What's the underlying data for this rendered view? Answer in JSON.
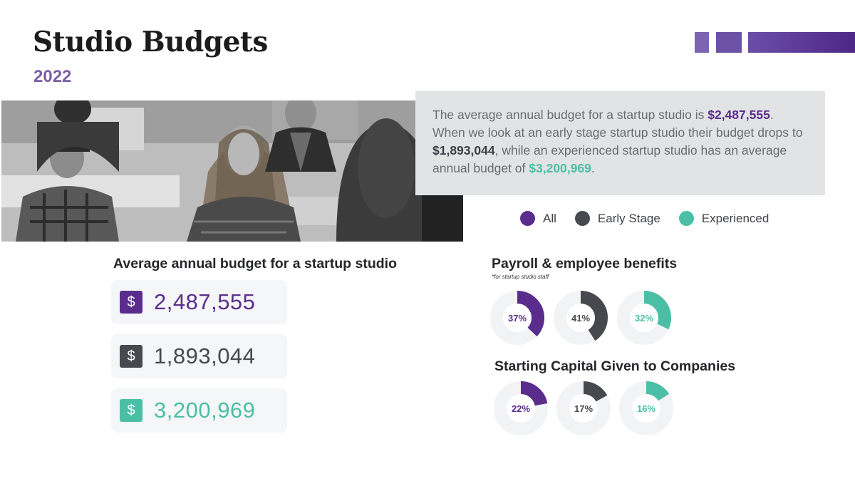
{
  "header": {
    "title": "Studio Budgets",
    "year": "2022"
  },
  "colors": {
    "all": "#5a2d8c",
    "early": "#46494e",
    "experienced": "#4bbfa6",
    "track": "#f2f3f5"
  },
  "summary": {
    "part1": "The average annual budget for a startup studio is ",
    "value_all": "$2,487,555",
    "part2": ". When we look at an early stage startup studio their budget drops to ",
    "value_early": "$1,893,044",
    "part3": ", while an experienced startup studio has an average annual budget of ",
    "value_experienced": "$3,200,969",
    "part4": "."
  },
  "legend": [
    {
      "label": "All",
      "color": "#5a2d8c"
    },
    {
      "label": "Early Stage",
      "color": "#46494e"
    },
    {
      "label": "Experienced",
      "color": "#4bbfa6"
    }
  ],
  "budgets": {
    "title": "Average annual budget for a startup studio",
    "items": [
      {
        "symbol": "$",
        "amount": "2,487,555",
        "color": "#5a2d8c"
      },
      {
        "symbol": "$",
        "amount": "1,893,044",
        "color": "#46494e"
      },
      {
        "symbol": "$",
        "amount": "3,200,969",
        "color": "#4bbfa6"
      }
    ]
  },
  "chart_data": [
    {
      "type": "pie",
      "title": "Payroll & employee benefits",
      "subtitle": "*for startup studio staff",
      "categories": [
        "All",
        "Early Stage",
        "Experienced"
      ],
      "values": [
        37,
        41,
        32
      ],
      "labels": [
        "37%",
        "41%",
        "32%"
      ]
    },
    {
      "type": "pie",
      "title": "Starting Capital Given to Companies",
      "categories": [
        "All",
        "Early Stage",
        "Experienced"
      ],
      "values": [
        22,
        17,
        16
      ],
      "labels": [
        "22%",
        "17%",
        "16%"
      ]
    }
  ]
}
